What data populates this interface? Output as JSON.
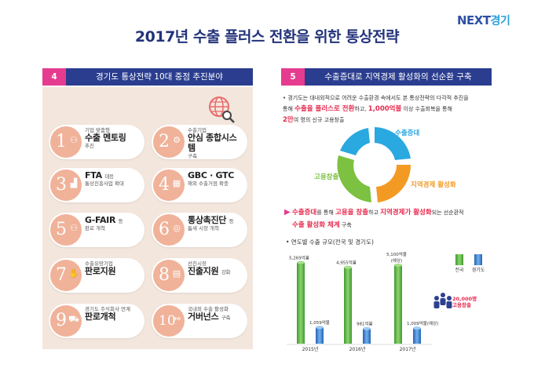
{
  "logo": {
    "next": "NEXT",
    "gg": "경기"
  },
  "title": "2017년 수출 플러스 전환을 위한 통상전략",
  "left": {
    "num": "4",
    "header": "경기도 통상전략 10대 중점 추진분야",
    "cards": [
      {
        "n": "1",
        "icon": "people-icon",
        "pre": "기업 맞춤형",
        "big": "수출 멘토링",
        "post": "추진"
      },
      {
        "n": "2",
        "icon": "system-icon",
        "pre": "수출기업",
        "big": "안심 종합시스템",
        "post": "구축"
      },
      {
        "n": "3",
        "icon": "chart-icon",
        "pre": "",
        "big": "FTA",
        "bigsuffix": "대응",
        "post": "통상진흥사업 확대"
      },
      {
        "n": "4",
        "icon": "building-icon",
        "pre": "",
        "big": "GBC · GTC",
        "post": "해외 수출거점 확충"
      },
      {
        "n": "5",
        "icon": "people-icon",
        "pre": "",
        "big": "G-FAIR",
        "bigsuffix": "등",
        "post": "판로 개척"
      },
      {
        "n": "6",
        "icon": "target-icon",
        "pre": "",
        "big": "통상촉진단",
        "bigsuffix": "등",
        "post": "틈새 시장 개척"
      },
      {
        "n": "7",
        "icon": "handshake-icon",
        "pre": "수출유망기업",
        "big": "판로지원",
        "post": ""
      },
      {
        "n": "8",
        "icon": "book-icon",
        "pre": "선진시장",
        "big": "진출지원",
        "bigsuffix": "강화",
        "post": ""
      },
      {
        "n": "9",
        "icon": "cart-icon",
        "pre": "경기도 주식회사 연계",
        "big": "판로개척",
        "post": ""
      },
      {
        "n": "10",
        "icon": "network-icon",
        "pre": "국내외 수출 활성화",
        "big": "거버넌스",
        "bigsuffix": "구축",
        "post": ""
      }
    ]
  },
  "right": {
    "num": "5",
    "header": "수출증대로 지역경제 활성화의 선순환 구축",
    "intro1": "• 경기도는 대내외적으로 어려운 수출환경 속에서도 본 통상전략의 다각적 추진을",
    "intro2a": "통해 ",
    "intro2b": "수출을 플러스로 전환",
    "intro2c": "하고, ",
    "intro2d": "1,000억불",
    "intro2e": " 이상 수출회복을 통해",
    "intro3a": "2만",
    "intro3b": "여 명의 신규 고용창출",
    "cycle": {
      "top": "수출증대",
      "right": "지역경제 활성화",
      "left": "고용창출"
    },
    "summary": {
      "a": "수출증대",
      "b": "를 통해 ",
      "c": "고용을 창출",
      "d": "하고 ",
      "e": "지역경제가 활성화",
      "f": "되는 선순환적",
      "g": "수출 활성화 체계",
      "h": " 구축"
    },
    "chart_title": "• 연도별 수출 규모(전국 및 경기도)",
    "annotation": {
      "line1": "20,000명",
      "line2": "고용창출"
    }
  },
  "chart_data": {
    "type": "bar",
    "title": "연도별 수출 규모(전국 및 경기도)",
    "categories": [
      "2015년",
      "2016년",
      "2017년"
    ],
    "series": [
      {
        "name": "전국",
        "color": "#5bb84a",
        "values": [
          5269,
          4955,
          5100
        ],
        "labels": [
          "5,269억불",
          "4,955억불",
          "5,100억불\n(예상)"
        ]
      },
      {
        "name": "경기도",
        "color": "#3c7fd0",
        "values": [
          1059,
          981,
          1009
        ],
        "labels": [
          "1,059억불",
          "981억불",
          "1,009억불(예상)"
        ]
      }
    ],
    "legend": [
      "전국",
      "경기도"
    ],
    "ylim": [
      0,
      5600
    ]
  }
}
